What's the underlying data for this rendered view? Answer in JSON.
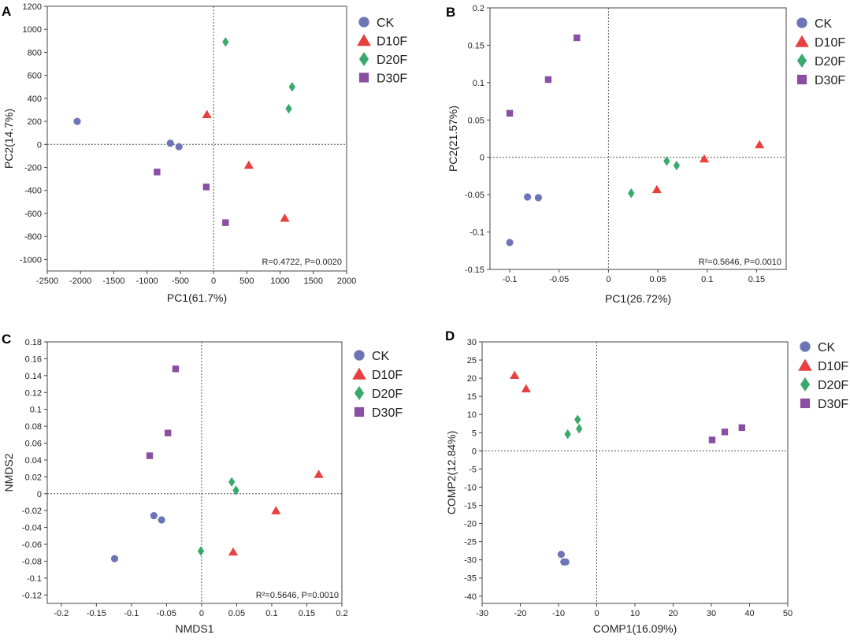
{
  "colors": {
    "CK": "#6e75b6",
    "D10F": "#e8403f",
    "D20F": "#3aaa6c",
    "D30F": "#8a4ea2"
  },
  "marker_icons": {
    "CK": "circle-marker",
    "D10F": "triangle-marker",
    "D20F": "diamond-marker",
    "D30F": "square-marker"
  },
  "chart_data": [
    {
      "panel": "A",
      "type": "scatter",
      "xlabel": "PC1(61.7%)",
      "ylabel": "PC2(14.7%)",
      "xlim": [
        -2500,
        2000
      ],
      "ylim": [
        -1100,
        1200
      ],
      "xticks": [
        -2500,
        -2000,
        -1500,
        -1000,
        -500,
        0,
        500,
        1000,
        1500,
        2000
      ],
      "yticks": [
        -1000,
        -800,
        -600,
        -400,
        -200,
        0,
        200,
        400,
        600,
        800,
        1000,
        1200
      ],
      "grid": false,
      "reference_lines": {
        "x": 0,
        "y": 0,
        "style": "dotted"
      },
      "annotation": "R=0.4722, P=0.0020",
      "legend": [
        "CK",
        "D10F",
        "D20F",
        "D30F"
      ],
      "series": [
        {
          "name": "CK",
          "x": [
            -2050,
            -650,
            -520
          ],
          "y": [
            200,
            10,
            -20
          ]
        },
        {
          "name": "D10F",
          "x": [
            -100,
            530,
            1070
          ],
          "y": [
            260,
            -180,
            -640
          ]
        },
        {
          "name": "D20F",
          "x": [
            180,
            1130,
            1180
          ],
          "y": [
            890,
            310,
            500
          ]
        },
        {
          "name": "D30F",
          "x": [
            -850,
            -110,
            180
          ],
          "y": [
            -240,
            -370,
            -680
          ]
        }
      ]
    },
    {
      "panel": "B",
      "type": "scatter",
      "xlabel": "PC1(26.72%)",
      "ylabel": "PC2(21.57%)",
      "xlim": [
        -0.12,
        0.18
      ],
      "ylim": [
        -0.15,
        0.2
      ],
      "xticks": [
        -0.1,
        -0.05,
        0,
        0.05,
        0.1,
        0.15
      ],
      "xtick_labels": [
        "-0.1",
        "-0.05",
        "0",
        "0.05",
        "0.1",
        "0.15"
      ],
      "yticks": [
        -0.15,
        -0.1,
        -0.05,
        0,
        0.05,
        0.1,
        0.15,
        0.2
      ],
      "ytick_labels": [
        "-0.15",
        "-0.1",
        "-0.05",
        "0",
        "0.05",
        "0.1",
        "0.15",
        "0.2"
      ],
      "grid": false,
      "reference_lines": {
        "x": 0,
        "y": 0,
        "style": "dotted"
      },
      "annotation": "R²=0.5646, P=0.0010",
      "legend": [
        "CK",
        "D10F",
        "D20F",
        "D30F"
      ],
      "series": [
        {
          "name": "CK",
          "x": [
            -0.1,
            -0.082,
            -0.071
          ],
          "y": [
            -0.114,
            -0.053,
            -0.054
          ]
        },
        {
          "name": "D10F",
          "x": [
            0.049,
            0.097,
            0.153
          ],
          "y": [
            -0.043,
            -0.002,
            0.017
          ]
        },
        {
          "name": "D20F",
          "x": [
            0.023,
            0.059,
            0.069
          ],
          "y": [
            -0.048,
            -0.005,
            -0.011
          ]
        },
        {
          "name": "D30F",
          "x": [
            -0.1,
            -0.061,
            -0.032
          ],
          "y": [
            0.059,
            0.104,
            0.16
          ]
        }
      ]
    },
    {
      "panel": "C",
      "type": "scatter",
      "xlabel": "NMDS1",
      "ylabel": "NMDS2",
      "xlim": [
        -0.22,
        0.2
      ],
      "ylim": [
        -0.13,
        0.18
      ],
      "xticks": [
        -0.2,
        -0.15,
        -0.1,
        -0.05,
        0,
        0.05,
        0.1,
        0.15,
        0.2
      ],
      "xtick_labels": [
        "-0.2",
        "-0.15",
        "-0.1",
        "-0.05",
        "0",
        "0.05",
        "0.1",
        "0.15",
        "0.2"
      ],
      "yticks": [
        -0.12,
        -0.1,
        -0.08,
        -0.06,
        -0.04,
        -0.02,
        0,
        0.02,
        0.04,
        0.06,
        0.08,
        0.1,
        0.12,
        0.14,
        0.16,
        0.18
      ],
      "ytick_labels": [
        "-0.12",
        "-0.1",
        "-0.08",
        "-0.06",
        "-0.04",
        "-0.02",
        "0",
        "0.02",
        "0.04",
        "0.06",
        "0.08",
        "0.1",
        "0.12",
        "0.14",
        "0.16",
        "0.18"
      ],
      "grid": false,
      "reference_lines": {
        "x": 0,
        "y": 0,
        "style": "dotted"
      },
      "annotation": "R²=0.5646, P=0.0010",
      "legend": [
        "CK",
        "D10F",
        "D20F",
        "D30F"
      ],
      "series": [
        {
          "name": "CK",
          "x": [
            -0.124,
            -0.068,
            -0.057
          ],
          "y": [
            -0.077,
            -0.026,
            -0.031
          ]
        },
        {
          "name": "D10F",
          "x": [
            0.045,
            0.106,
            0.167
          ],
          "y": [
            -0.069,
            -0.02,
            0.023
          ]
        },
        {
          "name": "D20F",
          "x": [
            -0.001,
            0.043,
            0.049
          ],
          "y": [
            -0.068,
            0.014,
            0.004
          ]
        },
        {
          "name": "D30F",
          "x": [
            -0.074,
            -0.048,
            -0.037
          ],
          "y": [
            0.045,
            0.072,
            0.148
          ]
        }
      ]
    },
    {
      "panel": "D",
      "type": "scatter",
      "xlabel": "COMP1(16.09%)",
      "ylabel": "COMP2(12.84%)",
      "xlim": [
        -30,
        50
      ],
      "ylim": [
        -42,
        30
      ],
      "xticks": [
        -30,
        -20,
        -10,
        0,
        10,
        20,
        30,
        40,
        50
      ],
      "yticks": [
        -40,
        -35,
        -30,
        -25,
        -20,
        -15,
        -10,
        -5,
        0,
        5,
        10,
        15,
        20,
        25,
        30
      ],
      "grid": false,
      "reference_lines": {
        "x": 0,
        "y": 0,
        "style": "dotted"
      },
      "annotation": "",
      "legend": [
        "CK",
        "D10F",
        "D20F",
        "D30F"
      ],
      "series": [
        {
          "name": "CK",
          "x": [
            -9.3,
            -8.6,
            -8.1
          ],
          "y": [
            -28.5,
            -30.6,
            -30.6
          ]
        },
        {
          "name": "D10F",
          "x": [
            -21.5,
            -18.5
          ],
          "y": [
            20.8,
            17.1
          ]
        },
        {
          "name": "D20F",
          "x": [
            -7.6,
            -5,
            -4.6
          ],
          "y": [
            4.6,
            8.6,
            6.1
          ]
        },
        {
          "name": "D30F",
          "x": [
            30.2,
            33.5,
            38
          ],
          "y": [
            3,
            5.2,
            6.4
          ]
        }
      ]
    }
  ]
}
